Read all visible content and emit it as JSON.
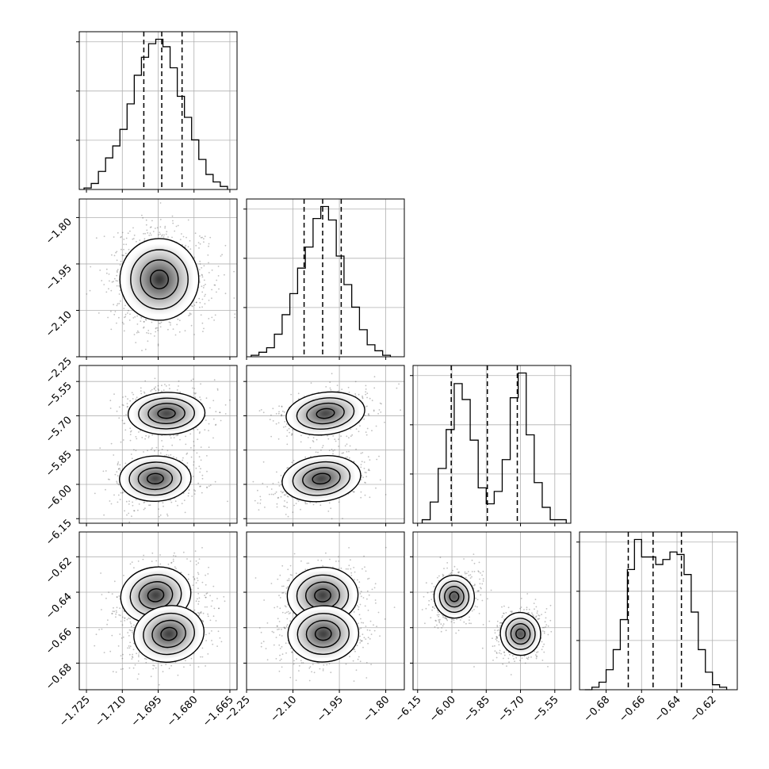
{
  "figure": {
    "kind": "corner plot",
    "axis_color": "#000000",
    "grid_color": "#b0b0b0",
    "point_color": "#4a4a4a",
    "line_color": "#000000"
  },
  "chart_data": {
    "type": "corner",
    "grid": true,
    "parameters": [
      {
        "ticks": [
          -1.725,
          -1.71,
          -1.695,
          -1.68,
          -1.665
        ],
        "tick_labels": [
          "−1.725",
          "−1.710",
          "−1.695",
          "−1.680",
          "−1.665"
        ],
        "range": [
          -1.728,
          -1.662
        ],
        "quantiles": [
          -1.701,
          -1.6935,
          -1.685
        ],
        "hist_bins": [
          -1.726,
          -1.723,
          -1.72,
          -1.717,
          -1.714,
          -1.711,
          -1.708,
          -1.705,
          -1.702,
          -1.699,
          -1.696,
          -1.693,
          -1.69,
          -1.687,
          -1.684,
          -1.681,
          -1.678,
          -1.675,
          -1.672,
          -1.669,
          -1.666
        ],
        "hist_values": [
          0.01,
          0.04,
          0.12,
          0.21,
          0.29,
          0.4,
          0.57,
          0.76,
          0.88,
          0.97,
          1.0,
          0.95,
          0.81,
          0.62,
          0.48,
          0.33,
          0.2,
          0.1,
          0.05,
          0.02
        ]
      },
      {
        "ticks": [
          -2.25,
          -2.1,
          -1.95,
          -1.8
        ],
        "tick_labels": [
          "−2.25",
          "−2.10",
          "−1.95",
          "−1.80"
        ],
        "range": [
          -2.25,
          -1.74
        ],
        "quantiles": [
          -2.064,
          -2.004,
          -1.944
        ],
        "hist_bins": [
          -2.235,
          -2.21,
          -2.185,
          -2.16,
          -2.135,
          -2.11,
          -2.085,
          -2.06,
          -2.035,
          -2.01,
          -1.985,
          -1.96,
          -1.935,
          -1.91,
          -1.885,
          -1.86,
          -1.835,
          -1.81,
          -1.785
        ],
        "hist_values": [
          0.01,
          0.03,
          0.06,
          0.15,
          0.28,
          0.42,
          0.59,
          0.73,
          0.92,
          1.0,
          0.91,
          0.67,
          0.48,
          0.33,
          0.18,
          0.08,
          0.04,
          0.01
        ]
      },
      {
        "ticks": [
          -6.15,
          -6.0,
          -5.85,
          -5.7,
          -5.55
        ],
        "tick_labels": [
          "−6.15",
          "−6.00",
          "−5.85",
          "−5.70",
          "−5.55"
        ],
        "range": [
          -6.17,
          -5.48
        ],
        "quantiles": [
          -6.003,
          -5.845,
          -5.714
        ],
        "hist_bins": [
          -6.13,
          -6.095,
          -6.06,
          -6.025,
          -5.99,
          -5.955,
          -5.92,
          -5.885,
          -5.85,
          -5.815,
          -5.78,
          -5.745,
          -5.71,
          -5.675,
          -5.64,
          -5.605,
          -5.57,
          -5.535,
          -5.5
        ],
        "hist_values": [
          0.02,
          0.12,
          0.31,
          0.53,
          0.79,
          0.7,
          0.47,
          0.2,
          0.11,
          0.18,
          0.36,
          0.71,
          0.85,
          0.5,
          0.23,
          0.09,
          0.02,
          0.02
        ]
      },
      {
        "ticks": [
          -0.68,
          -0.66,
          -0.64,
          -0.62
        ],
        "tick_labels": [
          "−0.68",
          "−0.66",
          "−0.64",
          "−0.62"
        ],
        "range": [
          -0.695,
          -0.606
        ],
        "quantiles": [
          -0.6675,
          -0.6535,
          -0.6375
        ],
        "hist_bins": [
          -0.692,
          -0.688,
          -0.684,
          -0.68,
          -0.676,
          -0.672,
          -0.668,
          -0.664,
          -0.66,
          -0.656,
          -0.652,
          -0.648,
          -0.644,
          -0.64,
          -0.636,
          -0.632,
          -0.628,
          -0.624,
          -0.62,
          -0.616,
          -0.612
        ],
        "hist_values": [
          0.0,
          0.01,
          0.03,
          0.08,
          0.16,
          0.28,
          0.48,
          0.6,
          0.53,
          0.53,
          0.5,
          0.52,
          0.55,
          0.54,
          0.46,
          0.31,
          0.16,
          0.07,
          0.02,
          0.01
        ]
      }
    ],
    "joint": [
      {
        "x": 0,
        "y": 1,
        "modes": [
          {
            "mx": -1.6945,
            "my": -2.0,
            "sx": 0.0075,
            "sy": 0.06,
            "rho": 0,
            "w": 1
          }
        ]
      },
      {
        "x": 0,
        "y": 2,
        "modes": [
          {
            "mx": -1.6915,
            "my": -5.69,
            "sx": 0.0073,
            "sy": 0.042,
            "rho": 0.08,
            "w": 0.5
          },
          {
            "mx": -1.6962,
            "my": -5.975,
            "sx": 0.0068,
            "sy": 0.045,
            "rho": 0.08,
            "w": 0.5
          }
        ]
      },
      {
        "x": 0,
        "y": 3,
        "modes": [
          {
            "mx": -1.696,
            "my": -0.6417,
            "sx": 0.0067,
            "sy": 0.0072,
            "rho": 0.35,
            "w": 0.5
          },
          {
            "mx": -1.6905,
            "my": -0.6635,
            "sx": 0.0067,
            "sy": 0.0072,
            "rho": 0.35,
            "w": 0.5
          }
        ]
      },
      {
        "x": 1,
        "y": 2,
        "modes": [
          {
            "mx": -1.995,
            "my": -5.69,
            "sx": 0.058,
            "sy": 0.042,
            "rho": 0.38,
            "w": 0.5
          },
          {
            "mx": -2.008,
            "my": -5.975,
            "sx": 0.058,
            "sy": 0.045,
            "rho": 0.38,
            "w": 0.5
          }
        ]
      },
      {
        "x": 1,
        "y": 3,
        "modes": [
          {
            "mx": -2.004,
            "my": -0.6418,
            "sx": 0.052,
            "sy": 0.0072,
            "rho": 0.1,
            "w": 0.5
          },
          {
            "mx": -2.002,
            "my": -0.6635,
            "sx": 0.052,
            "sy": 0.0072,
            "rho": 0.1,
            "w": 0.5
          }
        ]
      },
      {
        "x": 2,
        "y": 3,
        "modes": [
          {
            "mx": -5.99,
            "my": -0.6425,
            "sx": 0.04,
            "sy": 0.0055,
            "rho": 0.2,
            "w": 0.5
          },
          {
            "mx": -5.7,
            "my": -0.6635,
            "sx": 0.04,
            "sy": 0.0055,
            "rho": 0.2,
            "w": 0.5
          }
        ]
      }
    ]
  }
}
